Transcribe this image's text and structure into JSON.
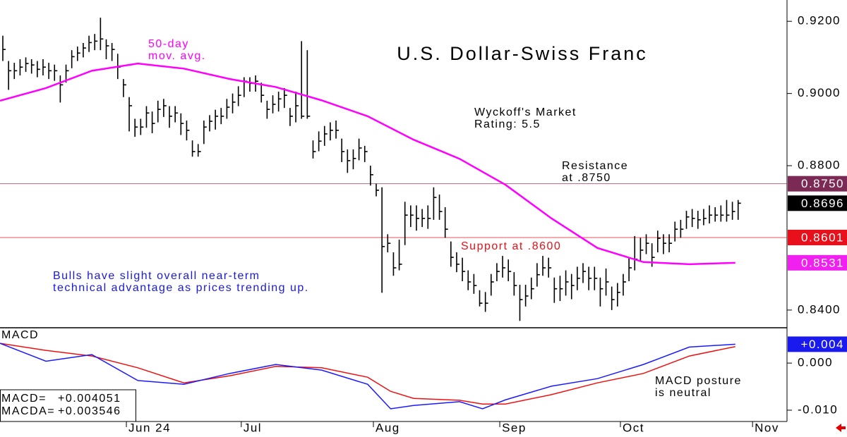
{
  "chart_data": [
    {
      "type": "ohlc",
      "title": "U.S. Dollar-Swiss Franc",
      "xlim": [
        0,
        137
      ],
      "ylim": [
        0.8351,
        0.9259
      ],
      "yticks": [
        {
          "value": 0.92,
          "label": "0.9200"
        },
        {
          "value": 0.9,
          "label": "0.9000"
        },
        {
          "value": 0.88,
          "label": "0.8800"
        },
        {
          "value": 0.84,
          "label": "0.8400"
        }
      ],
      "color": "#000000",
      "high": [
        0.916,
        0.909,
        0.9085,
        0.9095,
        0.91,
        0.9095,
        0.909,
        0.9095,
        0.9085,
        0.908,
        0.905,
        0.908,
        0.912,
        0.913,
        0.914,
        0.916,
        0.9165,
        0.921,
        0.915,
        0.914,
        0.911,
        0.904,
        0.899,
        0.893,
        0.893,
        0.8965,
        0.895,
        0.898,
        0.8985,
        0.8965,
        0.8965,
        0.8945,
        0.8925,
        0.887,
        0.886,
        0.8925,
        0.894,
        0.8955,
        0.896,
        0.8985,
        0.9,
        0.902,
        0.9045,
        0.9045,
        0.905,
        0.903,
        0.898,
        0.8995,
        0.9005,
        0.9015,
        0.896,
        0.9005,
        0.9145,
        0.912,
        0.887,
        0.8895,
        0.891,
        0.892,
        0.8925,
        0.8875,
        0.8845,
        0.8845,
        0.8875,
        0.8855,
        0.88,
        0.875,
        0.874,
        0.861,
        0.856,
        0.8595,
        0.87,
        0.869,
        0.869,
        0.868,
        0.869,
        0.874,
        0.872,
        0.8685,
        0.859,
        0.856,
        0.8545,
        0.851,
        0.85,
        0.8455,
        0.845,
        0.85,
        0.853,
        0.855,
        0.854,
        0.8505,
        0.847,
        0.847,
        0.849,
        0.853,
        0.855,
        0.8545,
        0.849,
        0.8495,
        0.851,
        0.85,
        0.852,
        0.853,
        0.852,
        0.852,
        0.849,
        0.8515,
        0.8465,
        0.8475,
        0.85,
        0.8545,
        0.8605,
        0.86,
        0.861,
        0.8585,
        0.862,
        0.861,
        0.861,
        0.8645,
        0.865,
        0.8675,
        0.868,
        0.8675,
        0.868,
        0.869,
        0.8685,
        0.869,
        0.8705,
        0.87,
        0.8705
      ],
      "low": [
        0.909,
        0.901,
        0.904,
        0.905,
        0.906,
        0.9055,
        0.9045,
        0.905,
        0.904,
        0.9035,
        0.8975,
        0.903,
        0.907,
        0.909,
        0.91,
        0.9115,
        0.912,
        0.912,
        0.9095,
        0.909,
        0.904,
        0.899,
        0.8895,
        0.888,
        0.8885,
        0.8905,
        0.889,
        0.892,
        0.8935,
        0.8905,
        0.892,
        0.8885,
        0.887,
        0.8825,
        0.8825,
        0.886,
        0.8895,
        0.89,
        0.8915,
        0.893,
        0.8945,
        0.8965,
        0.899,
        0.9005,
        0.9005,
        0.8975,
        0.893,
        0.8945,
        0.895,
        0.896,
        0.891,
        0.892,
        0.893,
        0.893,
        0.882,
        0.884,
        0.8855,
        0.887,
        0.8875,
        0.881,
        0.878,
        0.879,
        0.8815,
        0.881,
        0.8745,
        0.8715,
        0.8448,
        0.856,
        0.8495,
        0.851,
        0.858,
        0.863,
        0.862,
        0.863,
        0.8625,
        0.865,
        0.865,
        0.86,
        0.852,
        0.8505,
        0.848,
        0.8455,
        0.8445,
        0.841,
        0.8395,
        0.844,
        0.848,
        0.849,
        0.848,
        0.844,
        0.837,
        0.841,
        0.843,
        0.8465,
        0.8495,
        0.849,
        0.842,
        0.8425,
        0.844,
        0.843,
        0.8455,
        0.8475,
        0.8455,
        0.8455,
        0.841,
        0.844,
        0.84,
        0.841,
        0.844,
        0.848,
        0.851,
        0.8535,
        0.8555,
        0.852,
        0.856,
        0.8555,
        0.856,
        0.859,
        0.86,
        0.8625,
        0.863,
        0.8625,
        0.8635,
        0.864,
        0.8645,
        0.8645,
        0.8645,
        0.865,
        0.865
      ],
      "close": [
        0.9122,
        0.9063,
        0.9063,
        0.9073,
        0.9083,
        0.9079,
        0.9067,
        0.9073,
        0.9063,
        0.9063,
        0.9024,
        0.9063,
        0.9102,
        0.9112,
        0.9126,
        0.9141,
        0.9145,
        0.9151,
        0.9132,
        0.9122,
        0.9073,
        0.9024,
        0.8966,
        0.8907,
        0.8907,
        0.8946,
        0.8917,
        0.8956,
        0.8966,
        0.8937,
        0.8946,
        0.8917,
        0.8898,
        0.8839,
        0.8839,
        0.8907,
        0.8923,
        0.8937,
        0.8937,
        0.8962,
        0.8976,
        0.8995,
        0.9034,
        0.9028,
        0.9034,
        0.8995,
        0.8956,
        0.897,
        0.8985,
        0.8995,
        0.8937,
        0.8966,
        0.8937,
        0.8937,
        0.8839,
        0.8868,
        0.8888,
        0.8898,
        0.8898,
        0.8839,
        0.8814,
        0.882,
        0.8849,
        0.8839,
        0.8775,
        0.8732,
        0.8576,
        0.8585,
        0.8517,
        0.8527,
        0.8663,
        0.8663,
        0.8654,
        0.8654,
        0.8654,
        0.8712,
        0.8673,
        0.8624,
        0.8546,
        0.8527,
        0.8507,
        0.8478,
        0.8468,
        0.8419,
        0.8419,
        0.8478,
        0.8507,
        0.8517,
        0.8507,
        0.8468,
        0.8429,
        0.8439,
        0.8459,
        0.8498,
        0.8517,
        0.8517,
        0.8459,
        0.8459,
        0.8478,
        0.8468,
        0.8488,
        0.8507,
        0.8488,
        0.8488,
        0.8459,
        0.8478,
        0.8429,
        0.8449,
        0.8478,
        0.8517,
        0.8541,
        0.8566,
        0.8585,
        0.8546,
        0.8599,
        0.8585,
        0.8585,
        0.8624,
        0.8624,
        0.8658,
        0.8654,
        0.865,
        0.8654,
        0.8663,
        0.8663,
        0.8663,
        0.8663,
        0.8673,
        0.8696
      ],
      "moving_average": {
        "label_lines": [
          "50-day",
          "mov. avg."
        ],
        "color": "#ff00ff",
        "x": [
          0,
          8,
          16,
          24,
          32,
          40,
          48,
          56,
          64,
          72,
          80,
          88,
          96,
          104,
          112,
          120,
          128
        ],
        "values": [
          0.898,
          0.9015,
          0.9063,
          0.9083,
          0.9069,
          0.904,
          0.9018,
          0.8981,
          0.8937,
          0.8872,
          0.8819,
          0.8747,
          0.8654,
          0.8572,
          0.8533,
          0.8527,
          0.8531
        ]
      },
      "price_labels": [
        {
          "value": 0.875,
          "label": "0.8750",
          "color": "#7b2a55",
          "line": true
        },
        {
          "value": 0.8696,
          "label": "0.8696",
          "color": "#000000",
          "line": false
        },
        {
          "value": 0.8601,
          "label": "0.8601",
          "color": "#e8101a",
          "line": true
        },
        {
          "value": 0.8531,
          "label": "0.8531",
          "color": "#f020f0",
          "line": false
        }
      ],
      "annotations": [
        {
          "lines": [
            "Wyckoff's Market",
            "Rating: 5.5"
          ],
          "color": "#000000"
        },
        {
          "lines": [
            "Resistance",
            "at .8750"
          ],
          "color": "#000000"
        },
        {
          "lines": [
            "Support at .8600"
          ],
          "color": "#e8101a"
        },
        {
          "lines": [
            "Bulls have slight overall near-term",
            "technical advantage as prices trending up."
          ],
          "color": "#1a1adc"
        }
      ]
    },
    {
      "type": "line",
      "title": "MACD",
      "xlim": [
        0,
        137
      ],
      "ylim": [
        -0.0124,
        0.0075
      ],
      "yticks": [
        {
          "value": 0,
          "label": "0.000"
        },
        {
          "value": -0.01,
          "label": "-0.010"
        }
      ],
      "xticks": [
        {
          "value": 22,
          "label": "Jun 24"
        },
        {
          "value": 42,
          "label": "Jul"
        },
        {
          "value": 65,
          "label": "Aug"
        },
        {
          "value": 87,
          "label": "Sep"
        },
        {
          "value": 108,
          "label": "Oct"
        },
        {
          "value": 131,
          "label": "Nov"
        }
      ],
      "x": [
        0,
        8,
        16,
        24,
        32,
        40,
        48,
        56,
        64,
        68,
        72,
        80,
        84,
        88,
        96,
        104,
        112,
        120,
        128
      ],
      "series": [
        {
          "color": "#1a1aff",
          "values": [
            0.0042,
            0.0004,
            0.0018,
            -0.0037,
            -0.0045,
            -0.0022,
            -0.0003,
            -0.0015,
            -0.0045,
            -0.0097,
            -0.009,
            -0.0082,
            -0.0097,
            -0.0078,
            -0.0049,
            -0.0033,
            -0.0003,
            0.0034,
            0.004
          ]
        },
        {
          "color": "#ee1111",
          "values": [
            0.0042,
            0.0027,
            0.0015,
            -0.001,
            -0.0042,
            -0.0027,
            -0.0007,
            -0.001,
            -0.003,
            -0.006,
            -0.0075,
            -0.0079,
            -0.0087,
            -0.0087,
            -0.0067,
            -0.0042,
            -0.0022,
            0.0015,
            0.0035
          ]
        }
      ],
      "last_label": {
        "value": 0.004,
        "label": "+0.004",
        "color": "#1a1aee"
      },
      "readout": [
        {
          "label": "MACD=",
          "text": "+0.004051"
        },
        {
          "label": "MACDA=",
          "text": "+0.003546"
        }
      ],
      "annotations": [
        {
          "lines": [
            "MACD posture",
            "is neutral"
          ],
          "color": "#000000"
        }
      ]
    }
  ]
}
